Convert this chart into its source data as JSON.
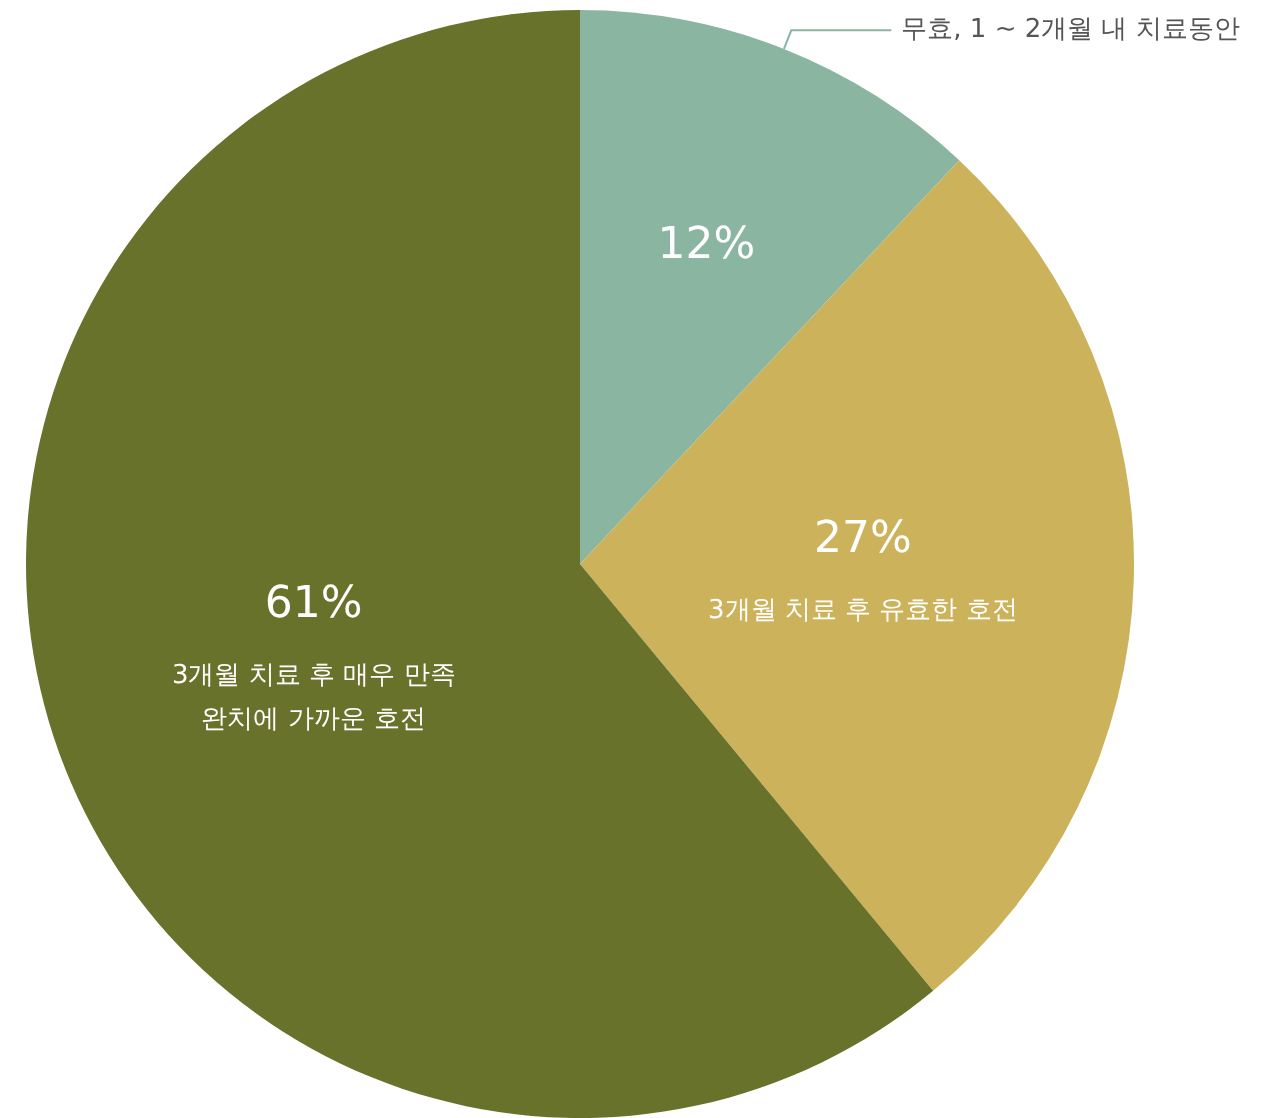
{
  "chart_data": {
    "type": "pie",
    "categories": [
      "무효, 1 ~ 2개월 내 치료동안",
      "3개월 치료 후 유효한 호전",
      "3개월 치료 후 매우 만족\n완치에 가까운 호전"
    ],
    "values": [
      12,
      27,
      61
    ],
    "colors": [
      "#8ab5a0",
      "#ccb25a",
      "#68722b"
    ],
    "value_labels": [
      "12%",
      "27%",
      "61%"
    ],
    "legend": false
  }
}
